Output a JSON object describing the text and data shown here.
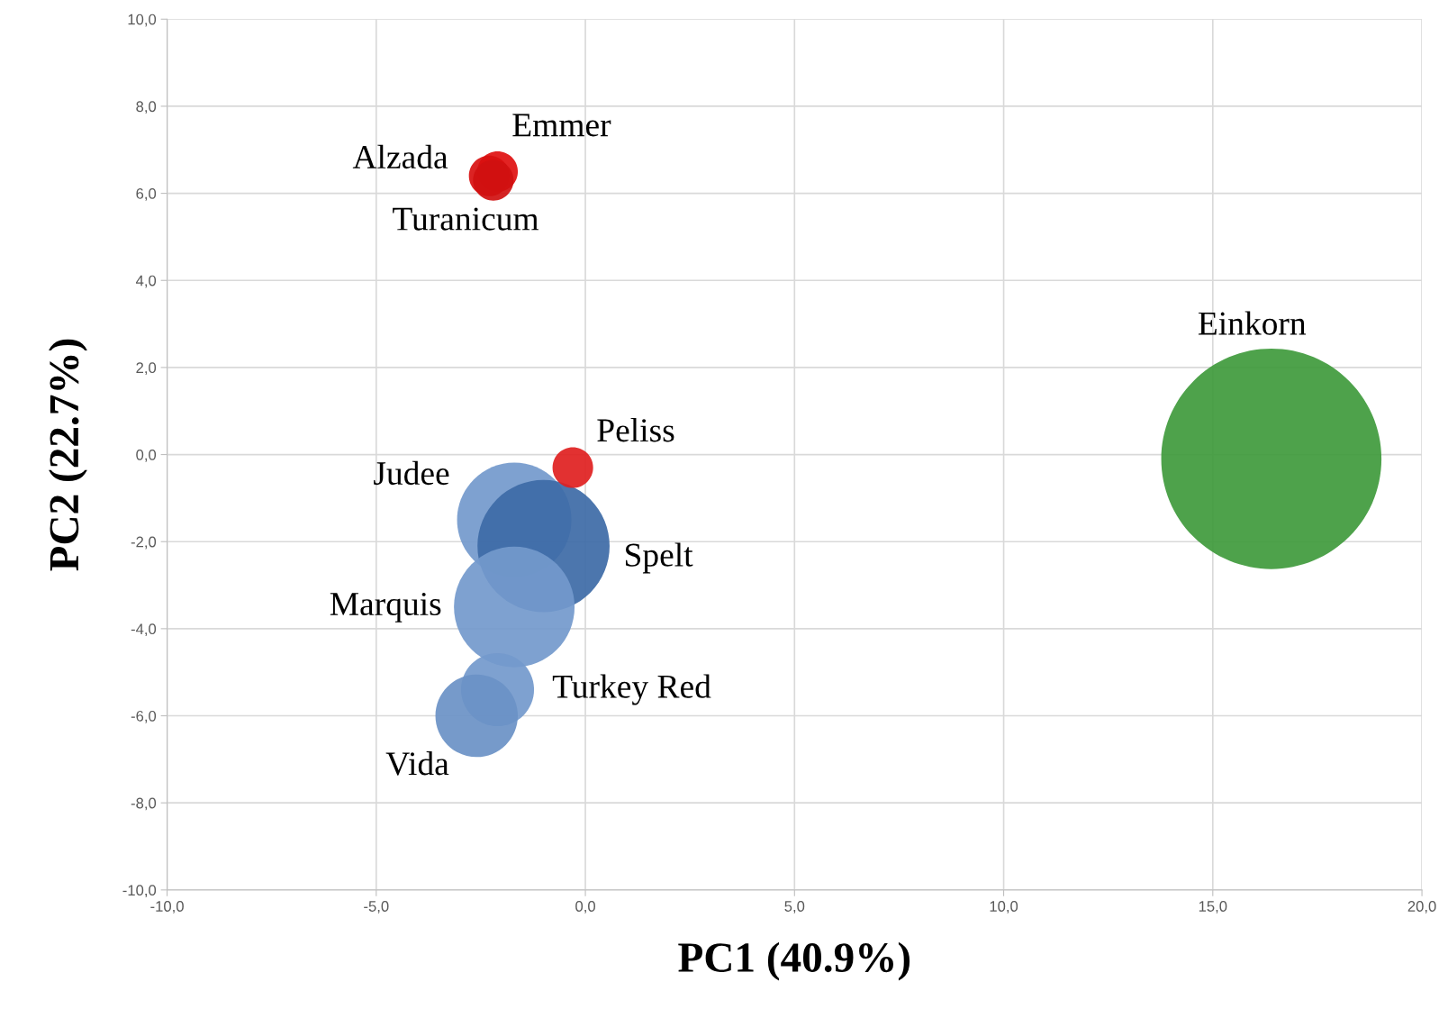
{
  "chart_data": {
    "type": "bubble",
    "xlabel": "PC1 (40.9%)",
    "ylabel": "PC2 (22.7%)",
    "series": [
      {
        "name": "Einkorn",
        "color": "#3f9a3c",
        "x": [
          16.4
        ],
        "values": [
          -0.1
        ],
        "sizes": [
          1
        ]
      },
      {
        "name": "Judee",
        "color": "#7399cc",
        "x": [
          -1.7
        ],
        "values": [
          -1.5
        ],
        "sizes": [
          0.27
        ]
      },
      {
        "name": "Spelt",
        "color": "#3d6aa6",
        "x": [
          -1.0
        ],
        "values": [
          -2.1
        ],
        "sizes": [
          0.36
        ]
      },
      {
        "name": "Marquis",
        "color": "#7399cc",
        "x": [
          -1.7
        ],
        "values": [
          -3.5
        ],
        "sizes": [
          0.3
        ]
      },
      {
        "name": "Turkey Red",
        "color": "#7399cc",
        "x": [
          -2.1
        ],
        "values": [
          -5.4
        ],
        "sizes": [
          0.11
        ]
      },
      {
        "name": "Vida",
        "color": "#6a91c6",
        "x": [
          -2.6
        ],
        "values": [
          -6.0
        ],
        "sizes": [
          0.14
        ]
      },
      {
        "name": "Peliss",
        "color": "#e02020",
        "x": [
          -0.3
        ],
        "values": [
          -0.3
        ],
        "sizes": [
          0.034
        ]
      },
      {
        "name": "Emmer",
        "color": "#e01010",
        "x": [
          -2.1
        ],
        "values": [
          6.5
        ],
        "sizes": [
          0.034
        ]
      },
      {
        "name": "Alzada",
        "color": "#d81010",
        "x": [
          -2.3
        ],
        "values": [
          6.4
        ],
        "sizes": [
          0.034
        ]
      },
      {
        "name": "Turanicum",
        "color": "#d01010",
        "x": [
          -2.2
        ],
        "values": [
          6.3
        ],
        "sizes": [
          0.034
        ]
      }
    ],
    "xlim": [
      -10,
      20
    ],
    "xticks": [
      {
        "value": -10,
        "label": "-10,0"
      },
      {
        "value": -5,
        "label": "-5,0"
      },
      {
        "value": 0,
        "label": "0,0"
      },
      {
        "value": 5,
        "label": "5,0"
      },
      {
        "value": 10,
        "label": "10,0"
      },
      {
        "value": 15,
        "label": "15,0"
      },
      {
        "value": 20,
        "label": "20,0"
      }
    ],
    "ylim": [
      -10,
      10
    ],
    "yticks": [
      {
        "value": -10,
        "label": "-10,0"
      },
      {
        "value": -8,
        "label": "-8,0"
      },
      {
        "value": -6,
        "label": "-6,0"
      },
      {
        "value": -4,
        "label": "-4,0"
      },
      {
        "value": -2,
        "label": "-2,0"
      },
      {
        "value": 0,
        "label": "0,0"
      },
      {
        "value": 2,
        "label": "2,0"
      },
      {
        "value": 4,
        "label": "4,0"
      },
      {
        "value": 6,
        "label": "6,0"
      },
      {
        "value": 8,
        "label": "8,0"
      },
      {
        "value": 10,
        "label": "10,0"
      }
    ],
    "grid": true
  }
}
